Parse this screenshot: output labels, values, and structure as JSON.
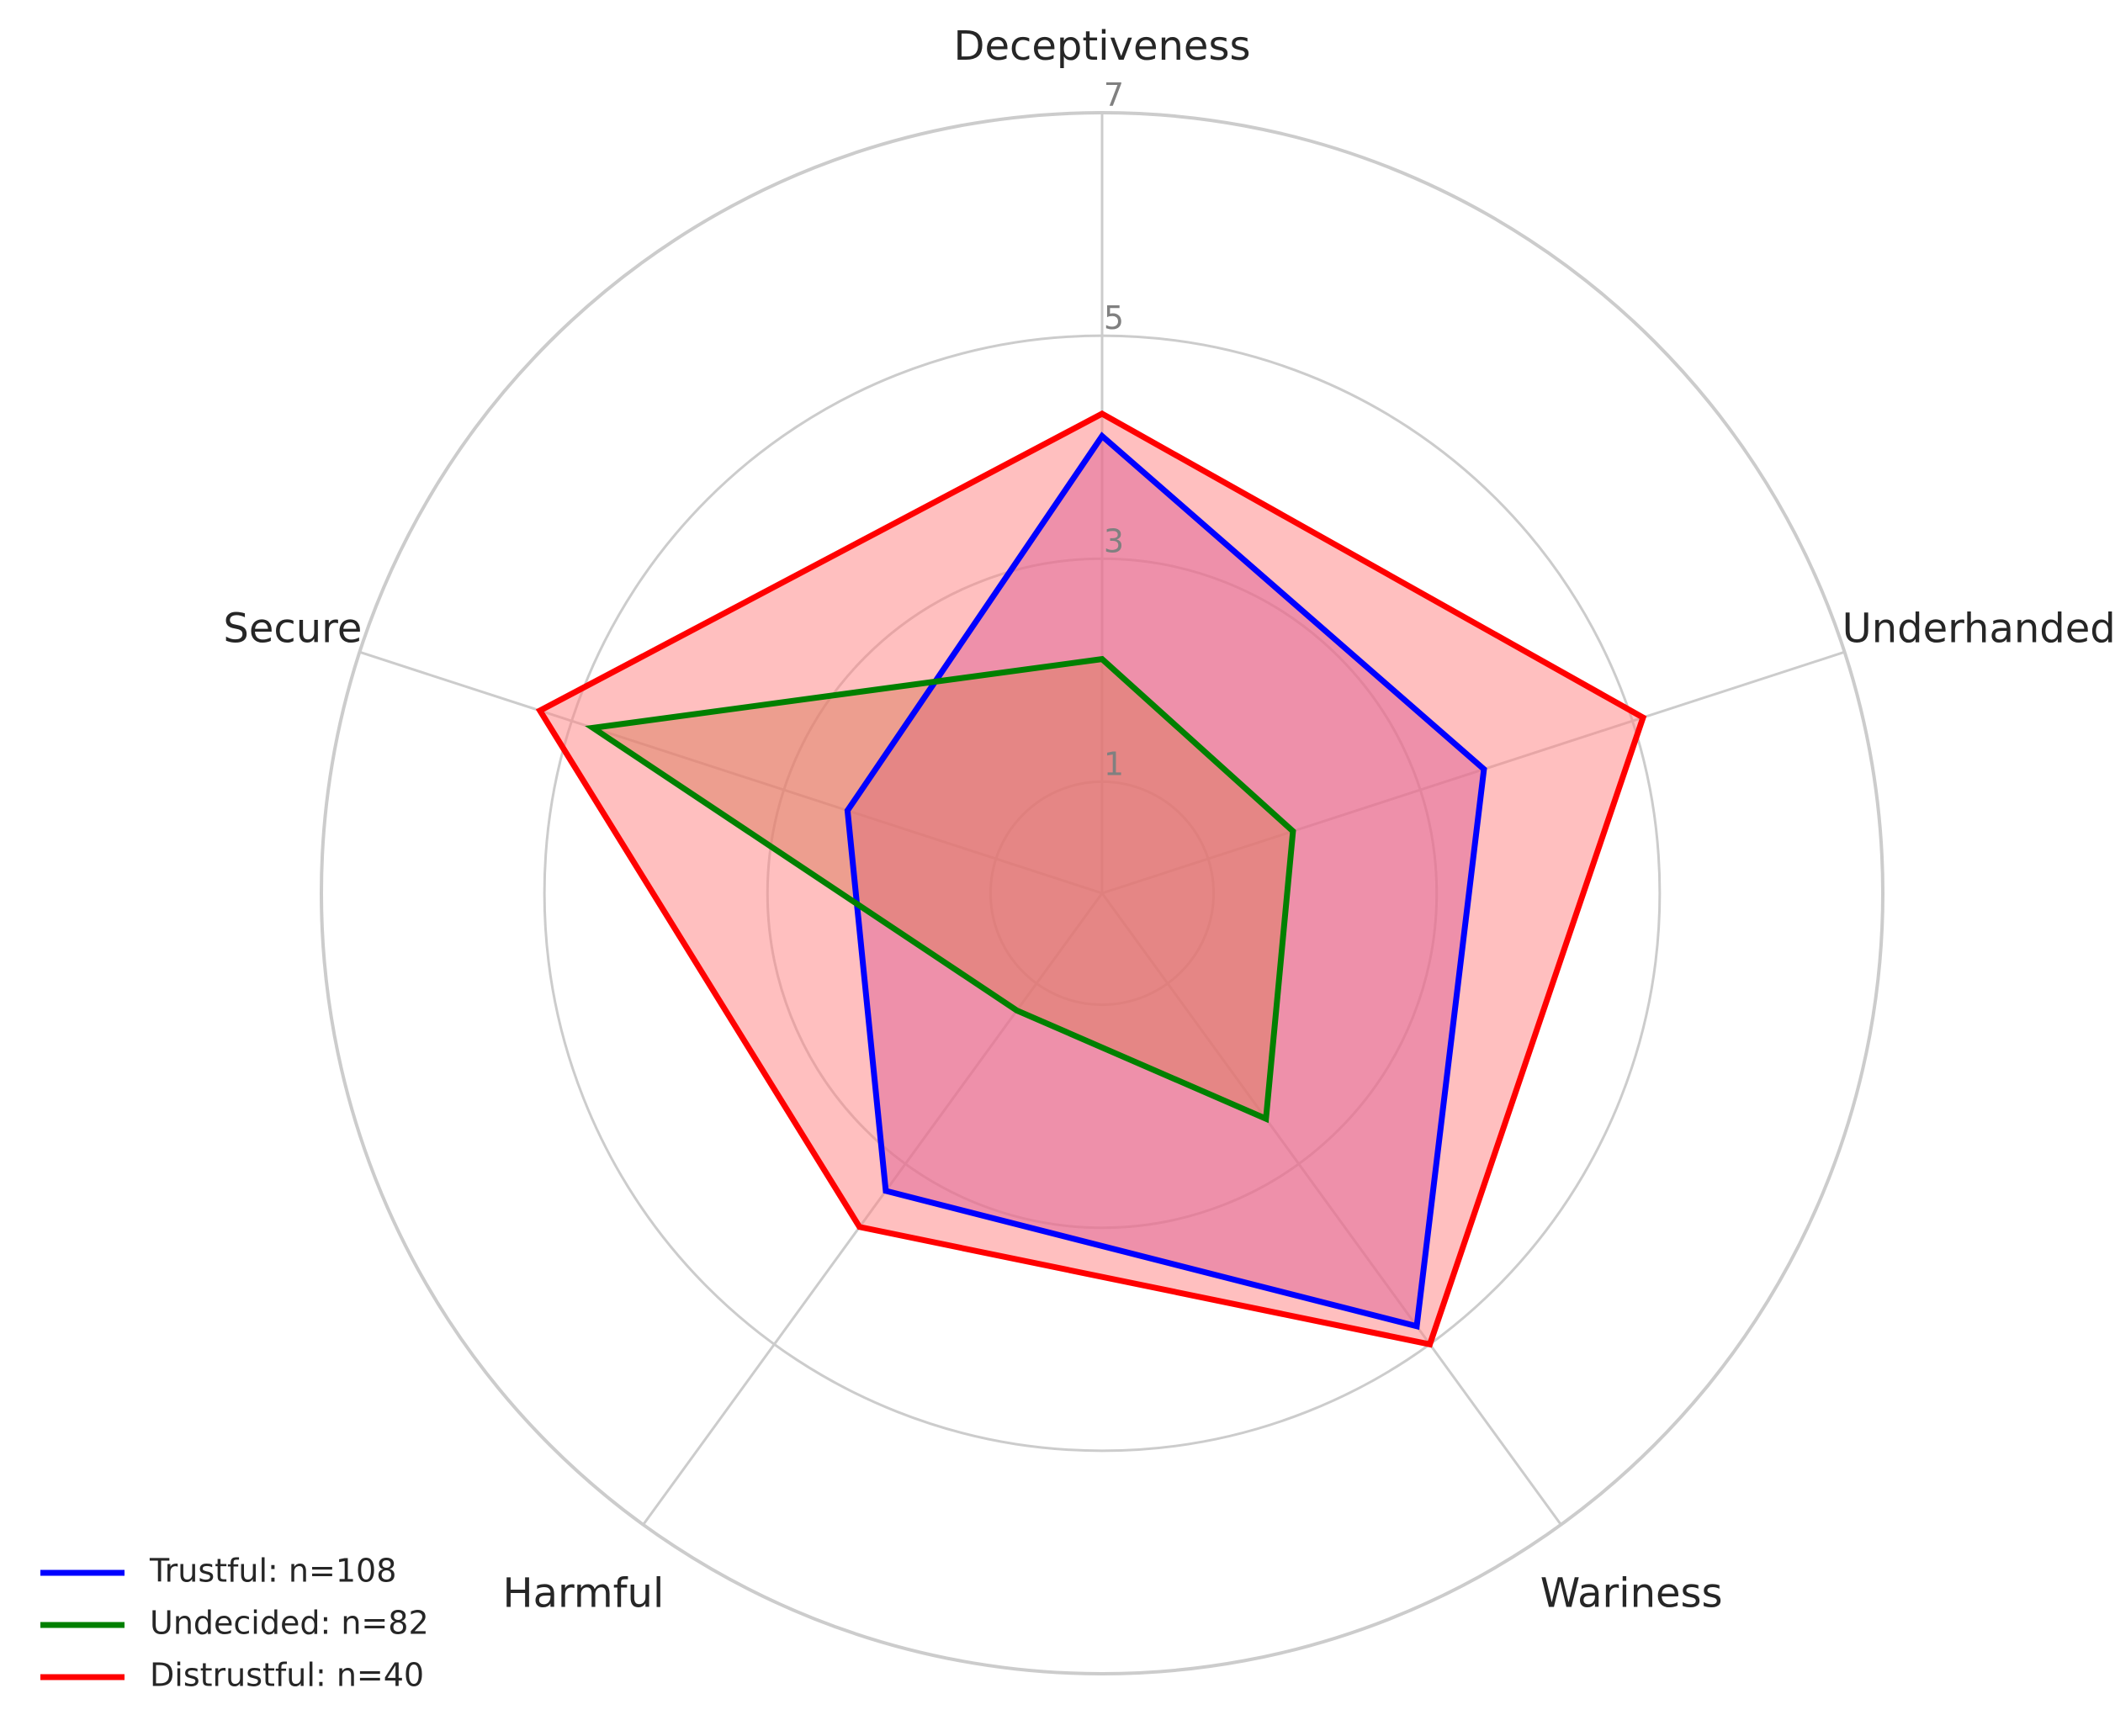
{
  "chart_data": {
    "type": "radar",
    "axes": [
      "Deceptiveness",
      "Underhandedness",
      "Wariness",
      "Harmful",
      "Secure"
    ],
    "rticks": [
      1,
      3,
      5,
      7
    ],
    "rlim": [
      0,
      7
    ],
    "grid": true,
    "legend_position": "lower-left",
    "series": [
      {
        "name": "Trustful: n=108",
        "values": [
          4.1,
          3.6,
          4.8,
          3.3,
          2.4
        ],
        "color": "#0000ff",
        "fill_color": "#bb44aa"
      },
      {
        "name": "Undecided: n=82",
        "values": [
          2.1,
          1.8,
          2.5,
          1.3,
          4.8
        ],
        "color": "#008000",
        "fill_color": "#b87a40"
      },
      {
        "name": "Distrustful: n=40",
        "values": [
          4.3,
          5.1,
          5.0,
          3.7,
          5.3
        ],
        "color": "#ff0000",
        "fill_color": "#ff8080"
      }
    ]
  }
}
